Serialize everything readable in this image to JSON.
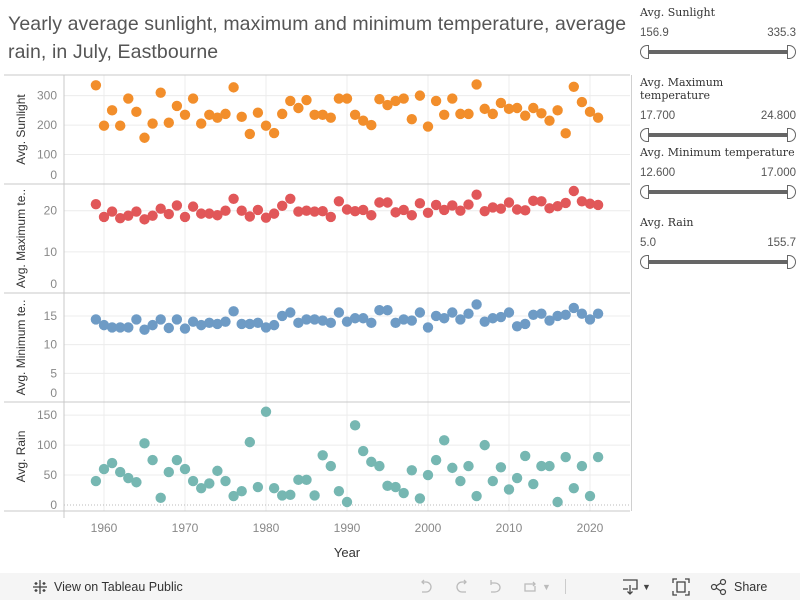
{
  "title": "Yearly average sunlight, maximum and minimum temperature, average rain, in July, Eastbourne",
  "filters": [
    {
      "label": "Avg. Sunlight",
      "min": "156.9",
      "max": "335.3"
    },
    {
      "label": "Avg. Maximum temperature",
      "min": "17.700",
      "max": "24.800"
    },
    {
      "label": "Avg. Minimum temperature",
      "min": "12.600",
      "max": "17.000"
    },
    {
      "label": "Avg. Rain",
      "min": "5.0",
      "max": "155.7"
    }
  ],
  "toolbar": {
    "view_label": "View on Tableau Public",
    "share_label": "Share"
  },
  "chart_data": {
    "type": "scatter",
    "xlabel": "Year",
    "x_ticks": [
      "1960",
      "1970",
      "1980",
      "1990",
      "2000",
      "2010",
      "2020"
    ],
    "x": [
      1959,
      1960,
      1961,
      1962,
      1963,
      1964,
      1965,
      1966,
      1967,
      1968,
      1969,
      1970,
      1971,
      1972,
      1973,
      1974,
      1975,
      1976,
      1977,
      1978,
      1979,
      1980,
      1981,
      1982,
      1983,
      1984,
      1985,
      1986,
      1987,
      1988,
      1989,
      1990,
      1991,
      1992,
      1993,
      1994,
      1995,
      1996,
      1997,
      1998,
      1999,
      2000,
      2001,
      2002,
      2003,
      2004,
      2005,
      2006,
      2007,
      2008,
      2009,
      2010,
      2011,
      2012,
      2013,
      2014,
      2015,
      2016,
      2017,
      2018,
      2019,
      2020,
      2021
    ],
    "series": [
      {
        "name": "Avg. Sunlight",
        "ylabel": "Avg. Sunlight",
        "color": "#f28e2b",
        "ylim": [
          0,
          370
        ],
        "y_ticks": [
          "0",
          "100",
          "200",
          "300"
        ],
        "values": [
          335,
          198,
          250,
          198,
          290,
          245,
          157,
          205,
          310,
          208,
          265,
          235,
          290,
          205,
          235,
          225,
          238,
          328,
          228,
          170,
          242,
          198,
          173,
          238,
          282,
          258,
          285,
          235,
          235,
          225,
          290,
          290,
          235,
          215,
          200,
          288,
          268,
          282,
          290,
          220,
          300,
          195,
          282,
          235,
          290,
          238,
          238,
          338,
          255,
          238,
          275,
          255,
          258,
          232,
          258,
          240,
          215,
          250,
          172,
          330,
          278,
          245,
          225
        ]
      },
      {
        "name": "Avg. Maximum temperature",
        "ylabel": "Avg. Maximum te..",
        "color": "#e15759",
        "ylim": [
          0,
          26.5
        ],
        "y_ticks": [
          "0",
          "10",
          "20"
        ],
        "values": [
          21.6,
          18.5,
          19.8,
          18.2,
          18.8,
          19.8,
          17.9,
          18.8,
          20.5,
          19.2,
          21.3,
          18.5,
          21.0,
          19.3,
          19.3,
          18.9,
          20.0,
          22.9,
          20.0,
          18.6,
          20.2,
          18.3,
          19.3,
          21.2,
          22.9,
          19.8,
          20.0,
          19.8,
          19.9,
          18.5,
          22.3,
          20.3,
          19.9,
          20.2,
          18.9,
          22.0,
          22.0,
          19.6,
          20.2,
          18.9,
          21.8,
          19.5,
          21.4,
          20.2,
          21.3,
          20.0,
          21.5,
          23.9,
          19.9,
          20.8,
          20.5,
          22.0,
          20.3,
          20.1,
          22.4,
          22.3,
          20.6,
          21.1,
          21.9,
          24.8,
          22.3,
          21.7,
          21.4
        ]
      },
      {
        "name": "Avg. Minimum temperature",
        "ylabel": "Avg. Minimum te..",
        "color": "#6e9bc5",
        "ylim": [
          0,
          19
        ],
        "y_ticks": [
          "0",
          "5",
          "10",
          "15"
        ],
        "values": [
          14.4,
          13.4,
          13.0,
          13.0,
          13.0,
          14.4,
          12.6,
          13.4,
          14.4,
          12.9,
          14.4,
          12.8,
          14.0,
          13.4,
          13.8,
          13.6,
          14.0,
          15.8,
          13.6,
          13.6,
          13.8,
          13.0,
          13.4,
          15.0,
          15.6,
          13.8,
          14.4,
          14.4,
          14.2,
          13.8,
          15.6,
          14.0,
          14.6,
          14.6,
          13.8,
          16.0,
          16.0,
          13.8,
          14.4,
          14.2,
          15.6,
          13.0,
          15.0,
          14.6,
          15.6,
          14.4,
          15.4,
          17.0,
          14.0,
          14.6,
          14.8,
          15.6,
          13.2,
          13.6,
          15.2,
          15.4,
          14.2,
          15.0,
          15.2,
          16.4,
          15.4,
          14.4,
          15.4
        ]
      },
      {
        "name": "Avg. Rain",
        "ylabel": "Avg. Rain",
        "color": "#76b7b2",
        "ylim": [
          0,
          172
        ],
        "y_ticks": [
          "0",
          "50",
          "100",
          "150"
        ],
        "values": [
          40,
          60,
          70,
          55,
          45,
          38,
          103,
          75,
          12,
          55,
          75,
          60,
          40,
          28,
          36,
          57,
          40,
          15,
          23,
          105,
          30,
          155.7,
          28,
          16,
          17,
          42,
          42,
          16,
          83,
          65,
          23,
          5,
          133,
          90,
          72,
          65,
          32,
          30,
          20,
          58,
          11,
          50,
          75,
          108,
          62,
          40,
          65,
          15,
          100,
          40,
          63,
          26,
          45,
          82,
          35,
          65,
          65,
          5,
          80,
          28,
          65,
          15,
          80
        ]
      }
    ]
  }
}
